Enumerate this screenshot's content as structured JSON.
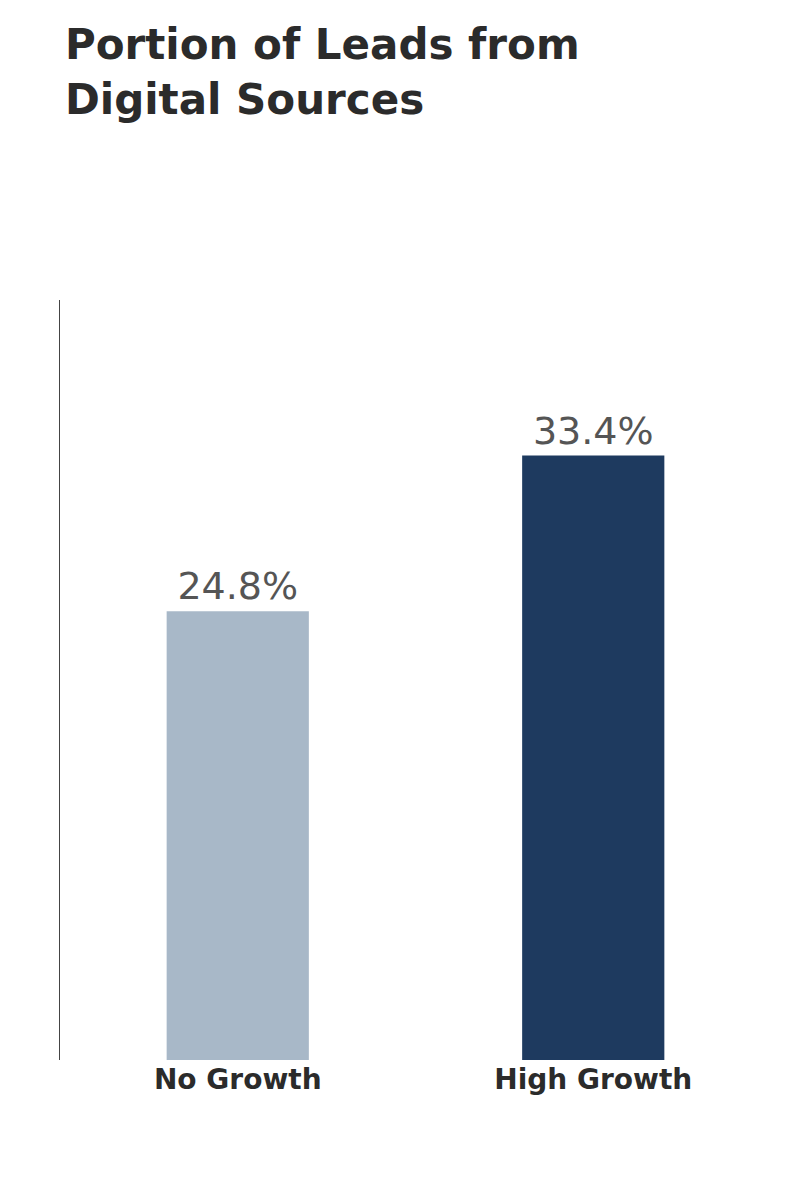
{
  "chart_data": {
    "type": "bar",
    "title": "Portion of Leads from\nDigital Sources",
    "categories": [
      "No Growth",
      "High Growth"
    ],
    "values": [
      24.8,
      33.4
    ],
    "value_labels": [
      "24.8%",
      "33.4%"
    ],
    "colors": [
      "#a8b8c8",
      "#1e3a5f"
    ],
    "ylim": [
      0,
      42
    ],
    "grid": false,
    "data_labels": true,
    "tick_labels": "x"
  }
}
